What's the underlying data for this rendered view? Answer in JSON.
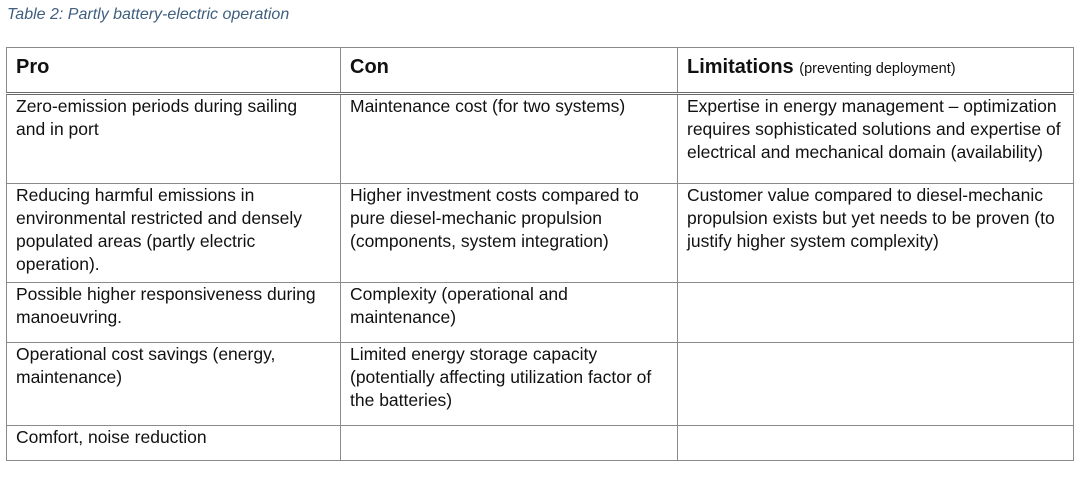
{
  "caption": "Table 2: Partly battery-electric operation",
  "headers": {
    "pro": "Pro",
    "con": "Con",
    "limitations": "Limitations",
    "limitations_note": "(preventing deployment)"
  },
  "rows": [
    {
      "pro": "Zero-emission periods during sailing and in port",
      "con": "Maintenance cost (for two systems)",
      "limitation": "Expertise in energy management – optimization requires sophisticated solutions and expertise of electrical and mechanical domain (availability)"
    },
    {
      "pro": "Reducing harmful emissions in environmental restricted and densely populated areas (partly electric operation).",
      "con": "Higher investment costs compared to pure diesel-mechanic propulsion (components, system integration)",
      "limitation": "Customer value compared to diesel-mechanic propulsion exists but yet needs to be proven (to justify higher system complexity)"
    },
    {
      "pro": "Possible higher responsiveness during manoeuvring.",
      "con": "Complexity (operational and maintenance)",
      "limitation": ""
    },
    {
      "pro": "Operational cost savings (energy, maintenance)",
      "con": "Limited energy storage capacity (potentially affecting utilization factor of the batteries)",
      "limitation": ""
    },
    {
      "pro": "Comfort, noise reduction",
      "con": "",
      "limitation": ""
    }
  ]
}
